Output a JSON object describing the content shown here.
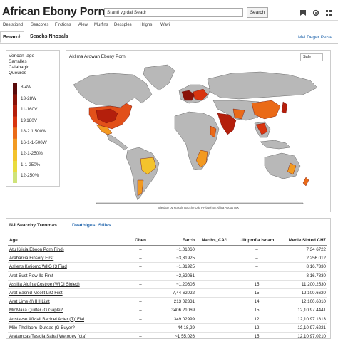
{
  "header": {
    "logo": "African Ebony Porn",
    "search_value": "Sranti vg dal Seadr",
    "search_button": "Search"
  },
  "nav": [
    "Desistiond",
    "Seacores",
    "Firctions",
    "Alew",
    "Murfins",
    "Dessples",
    "Hrighs",
    "Wavi"
  ],
  "tabs": {
    "active": "Berarch",
    "second": "Seachs Nnosals",
    "right_link": "Mel Deger Pelse"
  },
  "legend": {
    "title_lines": [
      "Verican Iage",
      "Sarralles",
      "Calabagic",
      "Queures"
    ],
    "entries": [
      {
        "label": "8-4W",
        "color": "#5a0a0a"
      },
      {
        "label": "13-28W",
        "color": "#8a1208"
      },
      {
        "label": "11-160V",
        "color": "#b41f0c"
      },
      {
        "label": "19'180V",
        "color": "#d8350f"
      },
      {
        "label": "18-2 1:500W",
        "color": "#ea6a18"
      },
      {
        "label": "16-1-1-500W",
        "color": "#f29a22"
      },
      {
        "label": "12-1-250%",
        "color": "#f3c32c"
      },
      {
        "label": "1-1-250%",
        "color": "#e9dc3e"
      },
      {
        "label": "12-250%",
        "color": "#cfe37a"
      }
    ]
  },
  "map": {
    "title": "Aklima Arowan Ebony Porn",
    "select": "Sale",
    "credit": "Wieldtoy by scoutlr, Dacche Olio Prybuol ISI Africa Abuus ISX"
  },
  "table": {
    "tab_active": "NJ Searchy Trenmas",
    "tab_other": "Deathiges: Stiles",
    "columns": [
      "Age",
      "Oben",
      "Earch",
      "Narths_CA°I",
      "Ulit profia Isdam",
      "Medie Sinted CH7"
    ],
    "rows": [
      [
        "Atu Kricia Eboon Porn Find)",
        "–",
        "~1,01060",
        "",
        "–",
        "7.34 6722"
      ],
      [
        "Arabarcia Finsory First",
        "–",
        "~3,31925",
        "",
        "–",
        "2,256.012"
      ],
      [
        "Asliens Kotiomc WIIG (3 Fiad",
        "–",
        "~1,31925",
        "",
        "–",
        "8.16.7330"
      ],
      [
        "Arat Bust Row Ilo First",
        "–",
        "~2,62061",
        "",
        "–",
        "8.16.7830"
      ],
      [
        "Assilla Aiofna Costroe (WIDI Sioled)",
        "–",
        "~1,20605",
        "",
        "15",
        "11,200.2530"
      ],
      [
        "Arat Basnid Meolit LiO Fiist",
        "–",
        "7,44 62022",
        "",
        "15",
        "12,100.6620"
      ],
      [
        "Arat Lime (I) IHI Lisft",
        "–",
        "213 02331",
        "",
        "14",
        "12,100.6810"
      ],
      [
        "MioMaila Quilter (G Gaple?",
        "–",
        "3406 21069",
        "",
        "15",
        "12,10,97.4441"
      ],
      [
        "Anstavse Afiziall Bacinel Acter (T)' Fial",
        "–",
        "349 02999",
        "",
        "12",
        "12,10,97.1813"
      ],
      [
        "Mile Phellaom IDuteas (G Buyer?",
        "–",
        "44 18,29",
        "",
        "12",
        "12,10,97.6221"
      ],
      [
        "Aratamcas Tesidia Sabal Wetodey (cta)",
        "–",
        "~1 55,026",
        "",
        "15",
        "12,10,97.0210"
      ],
      [
        "Ciale Pliny Macopa Bieyey 100 Fiost",
        "–",
        "~1,55,020",
        "",
        "14",
        "12,10,97.7810"
      ]
    ]
  }
}
